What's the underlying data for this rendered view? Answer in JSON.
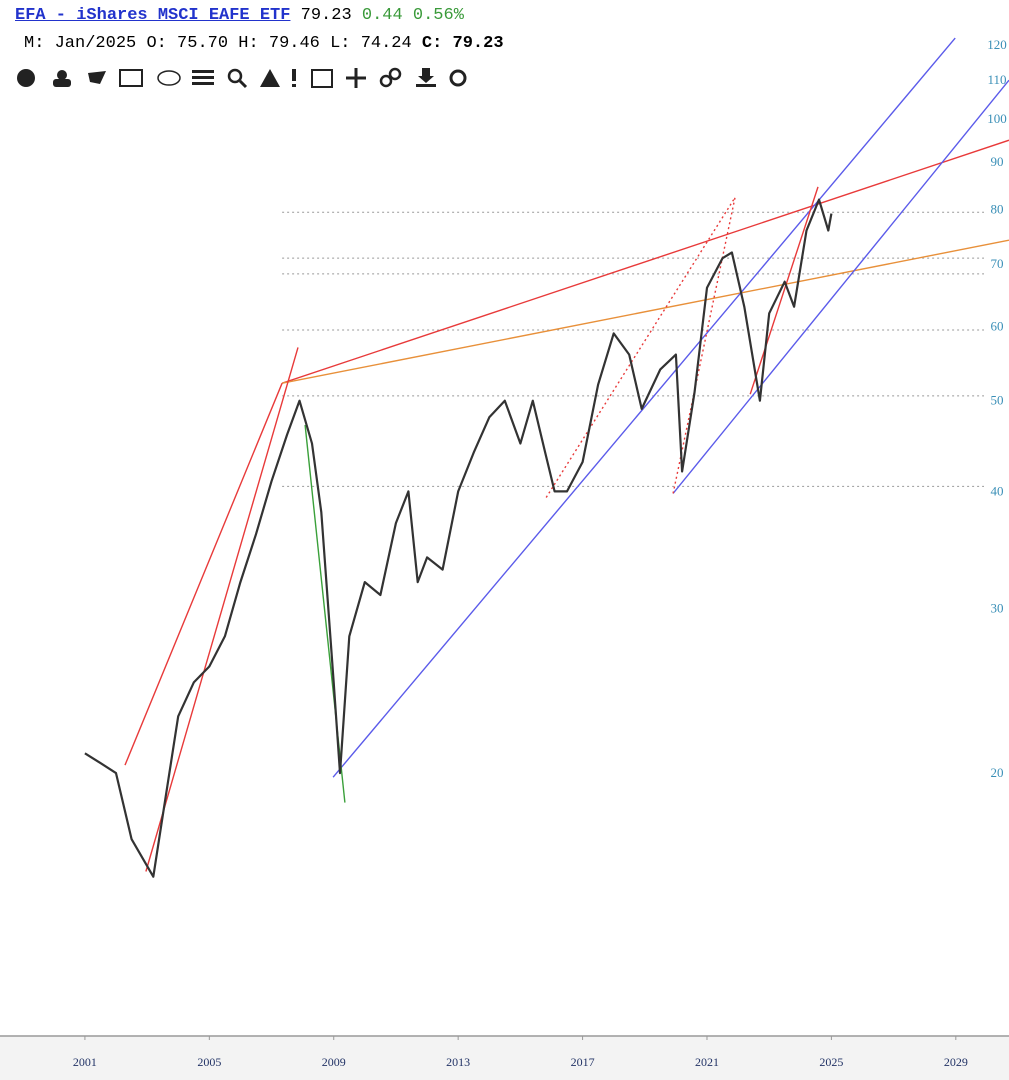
{
  "chart_data": {
    "type": "line",
    "header": {
      "title": "EFA - iShares MSCI EAFE ETF",
      "last": "79.23",
      "change": "0.44",
      "change_pct": "0.56%",
      "bar_info": [
        {
          "label": "M:",
          "value": "Jan/2025"
        },
        {
          "label": "O:",
          "value": "75.70"
        },
        {
          "label": "H:",
          "value": "79.46"
        },
        {
          "label": "L:",
          "value": "74.24"
        },
        {
          "label": "C:",
          "value": "79.23"
        }
      ]
    },
    "log_scale": true,
    "color": "#333333",
    "x": [
      2001.0,
      2001.5,
      2002.0,
      2002.5,
      2003.2,
      2003.5,
      2004.0,
      2004.5,
      2005.0,
      2005.5,
      2006.0,
      2006.5,
      2007.0,
      2007.5,
      2007.9,
      2008.3,
      2008.6,
      2009.0,
      2009.2,
      2009.5,
      2010.0,
      2010.5,
      2011.0,
      2011.4,
      2011.7,
      2012.0,
      2012.5,
      2013.0,
      2013.5,
      2014.0,
      2014.5,
      2015.0,
      2015.4,
      2015.8,
      2016.1,
      2016.5,
      2017.0,
      2017.5,
      2018.0,
      2018.5,
      2018.9,
      2019.5,
      2020.0,
      2020.2,
      2020.6,
      2021.0,
      2021.5,
      2021.8,
      2022.2,
      2022.7,
      2023.0,
      2023.5,
      2023.8,
      2024.2,
      2024.6,
      2024.9,
      2025.0
    ],
    "values": [
      21,
      20.5,
      20,
      17,
      15.5,
      18,
      23,
      25,
      26,
      28,
      32,
      36,
      41,
      46,
      50,
      45,
      38,
      25,
      20,
      28,
      32,
      31,
      37,
      40,
      32,
      34,
      33,
      40,
      44,
      48,
      50,
      45,
      50,
      44,
      40,
      40,
      43,
      52,
      59,
      56,
      49,
      54,
      56,
      42,
      51,
      66,
      71,
      72,
      63,
      50,
      62,
      67,
      63,
      76,
      82,
      76,
      79.23
    ],
    "trendlines": [
      {
        "x": [
          2007.34,
          2030.71
        ],
        "values": [
          52.2,
          94.9
        ],
        "color": "#e83a3a",
        "dashed": false
      },
      {
        "x": [
          2007.34,
          2030.71
        ],
        "values": [
          52.2,
          74.2
        ],
        "color": "#e8903a",
        "dashed": false
      },
      {
        "x": [
          2008.98,
          2028.98
        ],
        "values": [
          19.8,
          122
        ],
        "color": "#5b5bea",
        "dashed": false
      },
      {
        "x": [
          2019.91,
          2030.71
        ],
        "values": [
          39.8,
          110
        ],
        "color": "#5b5bea",
        "dashed": false
      },
      {
        "x": [
          2002.96,
          2007.85
        ],
        "values": [
          15.7,
          57
        ],
        "color": "#e83a3a",
        "dashed": false
      },
      {
        "x": [
          2002.29,
          2007.34
        ],
        "values": [
          20.4,
          52.2
        ],
        "color": "#e83a3a",
        "dashed": false
      },
      {
        "x": [
          2008.08,
          2009.36
        ],
        "values": [
          47.1,
          18.6
        ],
        "color": "#3aa03a",
        "dashed": false
      },
      {
        "x": [
          2015.83,
          2021.9
        ],
        "values": [
          39.4,
          82.4
        ],
        "color": "#e83a3a",
        "dashed": true
      },
      {
        "x": [
          2019.91,
          2021.9
        ],
        "values": [
          39.8,
          82.4
        ],
        "color": "#e83a3a",
        "dashed": true
      },
      {
        "x": [
          2022.39,
          2024.57
        ],
        "values": [
          50.8,
          84.6
        ],
        "color": "#e83a3a",
        "dashed": false
      }
    ],
    "levels": [
      79.5,
      71,
      68.3,
      59.5,
      50.6,
      40.5
    ],
    "level_color": "#999999",
    "xlim": [
      1998.27,
      2030.71
    ],
    "xticks": [
      2001,
      2005,
      2009,
      2013,
      2017,
      2021,
      2025,
      2029
    ],
    "ylim": [
      10.5,
      134
    ],
    "yticks": [
      20,
      30,
      40,
      50,
      60,
      70,
      80,
      90,
      100,
      110,
      120
    ]
  }
}
